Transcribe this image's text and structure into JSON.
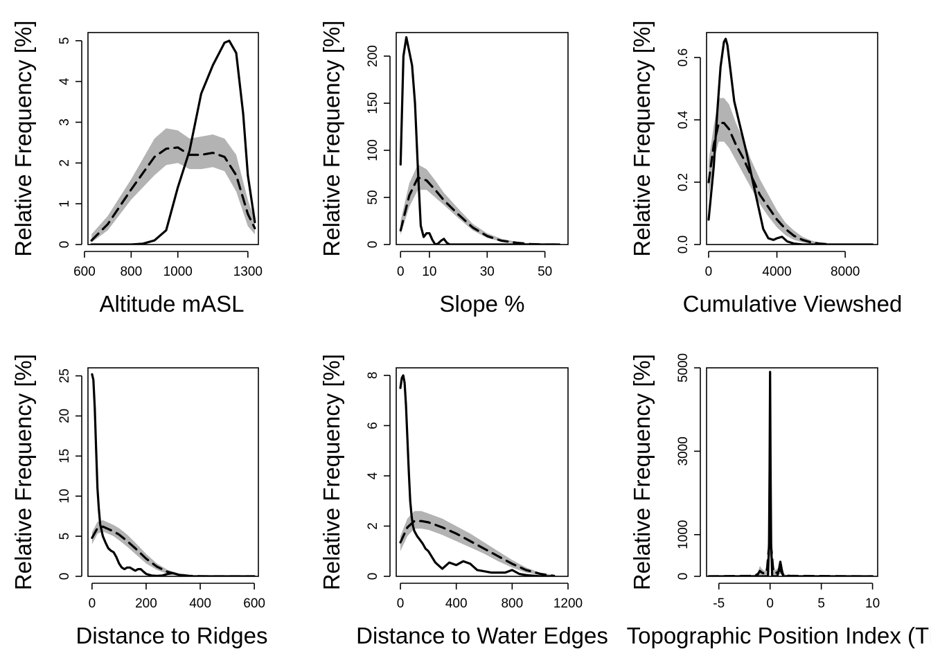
{
  "colors": {
    "observed": "#000000",
    "expected": "#000000",
    "envelope": "#b3b3b3",
    "axis": "#000000"
  },
  "chart_data": [
    {
      "type": "line",
      "xlabel": "Altitude mASL",
      "ylabel": "Relative Frequency [%]",
      "xlim": [
        615,
        1345
      ],
      "ylim": [
        0,
        5.2
      ],
      "xticks": [
        600,
        800,
        1000,
        1300
      ],
      "yticks": [
        0,
        1,
        2,
        3,
        4,
        5
      ],
      "series": [
        {
          "role": "envelope",
          "x": [
            630,
            700,
            800,
            900,
            950,
            1000,
            1050,
            1100,
            1150,
            1200,
            1250,
            1300,
            1330
          ],
          "upper": [
            0.25,
            0.7,
            1.6,
            2.6,
            2.85,
            2.8,
            2.6,
            2.65,
            2.7,
            2.6,
            2.2,
            1.1,
            0.6
          ],
          "lower": [
            0.05,
            0.35,
            1.1,
            1.7,
            1.95,
            2.0,
            1.85,
            1.85,
            1.9,
            1.8,
            1.3,
            0.45,
            0.25
          ]
        },
        {
          "role": "expected",
          "dashed": true,
          "x": [
            630,
            700,
            800,
            900,
            950,
            1000,
            1050,
            1100,
            1150,
            1200,
            1250,
            1300,
            1330
          ],
          "y": [
            0.1,
            0.5,
            1.35,
            2.15,
            2.35,
            2.38,
            2.2,
            2.2,
            2.25,
            2.15,
            1.7,
            0.75,
            0.4
          ]
        },
        {
          "role": "observed",
          "x": [
            630,
            700,
            800,
            850,
            900,
            950,
            1000,
            1050,
            1100,
            1150,
            1200,
            1220,
            1250,
            1280,
            1300,
            1330
          ],
          "y": [
            0,
            0,
            0,
            0.02,
            0.1,
            0.35,
            1.4,
            2.3,
            3.7,
            4.4,
            4.95,
            5.0,
            4.7,
            3.2,
            1.7,
            0.55
          ]
        }
      ]
    },
    {
      "type": "line",
      "xlabel": "Slope %",
      "ylabel": "Relative Frequency [%]",
      "xlim": [
        -1.5,
        58
      ],
      "ylim": [
        0,
        225
      ],
      "xticks": [
        0,
        10,
        30,
        50
      ],
      "yticks": [
        0,
        50,
        100,
        150,
        200
      ],
      "series": [
        {
          "role": "envelope",
          "x": [
            0,
            3,
            6,
            9,
            12,
            15,
            20,
            25,
            30,
            35,
            40,
            45,
            50,
            55
          ],
          "upper": [
            25,
            65,
            85,
            80,
            68,
            55,
            38,
            22,
            12,
            6,
            3,
            1,
            0.5,
            0
          ],
          "lower": [
            10,
            40,
            58,
            58,
            50,
            42,
            28,
            15,
            7,
            3,
            1,
            0,
            0,
            0
          ]
        },
        {
          "role": "expected",
          "dashed": true,
          "x": [
            0,
            3,
            6,
            9,
            12,
            15,
            20,
            25,
            30,
            35,
            40,
            45,
            50,
            55
          ],
          "y": [
            15,
            52,
            71,
            68,
            58,
            47,
            32,
            18,
            9,
            4,
            2,
            0.5,
            0,
            0
          ]
        },
        {
          "role": "observed",
          "x": [
            0,
            1,
            2,
            3,
            4,
            5,
            6,
            7,
            8,
            9,
            10,
            11,
            12,
            13,
            14,
            15,
            16,
            17,
            18,
            20,
            25,
            30,
            40,
            55
          ],
          "y": [
            85,
            200,
            220,
            205,
            190,
            150,
            80,
            20,
            8,
            12,
            12,
            5,
            0,
            1,
            4,
            6,
            2,
            0,
            0,
            0,
            0,
            0,
            0,
            0
          ]
        }
      ]
    },
    {
      "type": "line",
      "xlabel": "Cumulative Viewshed",
      "ylabel": "Relative Frequency [%]",
      "xlim": [
        -120,
        9900
      ],
      "ylim": [
        0,
        0.68
      ],
      "xticks": [
        0,
        4000,
        8000
      ],
      "yticks": [
        0.0,
        0.2,
        0.4,
        0.6
      ],
      "series": [
        {
          "role": "envelope",
          "x": [
            0,
            300,
            600,
            900,
            1200,
            1600,
            2000,
            2500,
            3000,
            3500,
            4000,
            4500,
            5000,
            5500,
            6000,
            6500,
            7000,
            7500
          ],
          "upper": [
            0.27,
            0.38,
            0.47,
            0.47,
            0.45,
            0.39,
            0.34,
            0.27,
            0.21,
            0.16,
            0.11,
            0.07,
            0.045,
            0.025,
            0.013,
            0.006,
            0.002,
            0
          ],
          "lower": [
            0.15,
            0.27,
            0.33,
            0.33,
            0.31,
            0.27,
            0.23,
            0.18,
            0.13,
            0.09,
            0.055,
            0.03,
            0.015,
            0.007,
            0.003,
            0.001,
            0,
            0
          ]
        },
        {
          "role": "expected",
          "dashed": true,
          "x": [
            0,
            300,
            600,
            900,
            1200,
            1600,
            2000,
            2500,
            3000,
            3500,
            4000,
            4500,
            5000,
            5500,
            6000,
            6500,
            7000
          ],
          "y": [
            0.2,
            0.32,
            0.39,
            0.39,
            0.37,
            0.32,
            0.28,
            0.22,
            0.16,
            0.12,
            0.08,
            0.05,
            0.028,
            0.015,
            0.007,
            0.003,
            0.001
          ]
        },
        {
          "role": "observed",
          "x": [
            0,
            300,
            500,
            700,
            900,
            1000,
            1100,
            1300,
            1500,
            1800,
            2200,
            2600,
            3000,
            3200,
            3500,
            3800,
            4000,
            4300,
            4600,
            5000,
            5500,
            6000,
            9600
          ],
          "y": [
            0.08,
            0.25,
            0.42,
            0.57,
            0.65,
            0.66,
            0.64,
            0.55,
            0.46,
            0.39,
            0.3,
            0.2,
            0.1,
            0.05,
            0.02,
            0.015,
            0.02,
            0.025,
            0.01,
            0.003,
            0,
            0,
            0
          ]
        }
      ]
    },
    {
      "type": "line",
      "xlabel": "Distance to Ridges",
      "ylabel": "Relative Frequency [%]",
      "xlim": [
        -15,
        615
      ],
      "ylim": [
        0,
        26
      ],
      "xticks": [
        0,
        200,
        400,
        600
      ],
      "yticks": [
        0,
        5,
        10,
        15,
        20,
        25
      ],
      "series": [
        {
          "role": "envelope",
          "x": [
            0,
            20,
            40,
            60,
            80,
            100,
            130,
            160,
            200,
            240,
            280,
            320,
            360,
            400,
            450,
            500,
            550,
            600
          ],
          "upper": [
            5.5,
            6.8,
            7.0,
            6.7,
            6.4,
            6.0,
            5.2,
            4.2,
            2.8,
            1.6,
            0.8,
            0.35,
            0.15,
            0.05,
            0,
            0,
            0,
            0
          ],
          "lower": [
            4.0,
            5.3,
            5.6,
            5.3,
            5.0,
            4.5,
            3.7,
            2.8,
            1.6,
            0.8,
            0.3,
            0.1,
            0,
            0,
            0,
            0,
            0,
            0
          ]
        },
        {
          "role": "expected",
          "dashed": true,
          "x": [
            0,
            20,
            40,
            60,
            80,
            100,
            130,
            160,
            200,
            240,
            280,
            320,
            360,
            400,
            450,
            500,
            550,
            600
          ],
          "y": [
            4.8,
            6.0,
            6.2,
            5.9,
            5.6,
            5.2,
            4.4,
            3.5,
            2.2,
            1.2,
            0.55,
            0.2,
            0.06,
            0.02,
            0,
            0,
            0,
            0
          ]
        },
        {
          "role": "observed",
          "x": [
            0,
            5,
            10,
            15,
            20,
            25,
            30,
            40,
            50,
            60,
            70,
            80,
            90,
            100,
            110,
            120,
            130,
            140,
            150,
            160,
            170,
            180,
            190,
            200,
            220,
            240,
            260,
            280,
            300,
            320,
            340,
            360,
            400,
            600
          ],
          "y": [
            25.2,
            24.5,
            21,
            16,
            11,
            8.5,
            6.5,
            5,
            4.2,
            3.5,
            3.2,
            3.0,
            2.4,
            1.6,
            1.1,
            0.9,
            1.1,
            1.1,
            0.9,
            0.7,
            0.9,
            0.9,
            0.6,
            0.3,
            0.1,
            0.05,
            0.1,
            0.3,
            0.4,
            0.2,
            0.1,
            0,
            0,
            0
          ]
        }
      ]
    },
    {
      "type": "line",
      "xlabel": "Distance to Water Edges",
      "ylabel": "Relative Frequency [%]",
      "xlim": [
        -30,
        1200
      ],
      "ylim": [
        0,
        8.3
      ],
      "xticks": [
        0,
        400,
        800,
        1200
      ],
      "yticks": [
        0,
        2,
        4,
        6,
        8
      ],
      "series": [
        {
          "role": "envelope",
          "x": [
            0,
            50,
            100,
            150,
            200,
            300,
            400,
            500,
            600,
            700,
            800,
            900,
            1000,
            1100
          ],
          "upper": [
            1.6,
            2.3,
            2.6,
            2.6,
            2.5,
            2.3,
            2.0,
            1.7,
            1.35,
            1.0,
            0.65,
            0.35,
            0.15,
            0.05
          ],
          "lower": [
            1.0,
            1.6,
            1.9,
            1.9,
            1.85,
            1.65,
            1.4,
            1.15,
            0.9,
            0.6,
            0.35,
            0.15,
            0.05,
            0
          ]
        },
        {
          "role": "expected",
          "dashed": true,
          "x": [
            0,
            50,
            100,
            150,
            200,
            300,
            400,
            500,
            600,
            700,
            800,
            900,
            1000,
            1100
          ],
          "y": [
            1.35,
            1.95,
            2.2,
            2.2,
            2.15,
            1.95,
            1.7,
            1.4,
            1.1,
            0.8,
            0.5,
            0.25,
            0.1,
            0.02
          ]
        },
        {
          "role": "observed",
          "x": [
            0,
            10,
            20,
            30,
            40,
            50,
            60,
            70,
            80,
            90,
            100,
            120,
            140,
            160,
            180,
            200,
            250,
            300,
            350,
            400,
            450,
            500,
            550,
            600,
            650,
            700,
            750,
            800,
            850,
            900,
            1000,
            1100
          ],
          "y": [
            7.5,
            7.9,
            8.0,
            7.7,
            6.8,
            5.5,
            4.2,
            3.0,
            2.4,
            2.0,
            1.8,
            1.6,
            1.45,
            1.3,
            1.1,
            1.0,
            0.55,
            0.3,
            0.55,
            0.45,
            0.6,
            0.5,
            0.25,
            0.2,
            0.15,
            0.15,
            0.15,
            0.25,
            0.1,
            0.05,
            0,
            0
          ]
        }
      ]
    },
    {
      "type": "line",
      "xlabel": "Topographic Position Index (TPI)",
      "ylabel": "Relative Frequency [%]",
      "xlim": [
        -6.2,
        10.5
      ],
      "ylim": [
        0,
        5000
      ],
      "xticks": [
        -5,
        0,
        5,
        10
      ],
      "yticks": [
        0,
        1000,
        3000,
        5000
      ],
      "series": [
        {
          "role": "envelope",
          "x": [
            -6,
            -2,
            -1.5,
            -1.2,
            -1,
            -0.8,
            -0.5,
            -0.3,
            -0.15,
            0,
            0.15,
            0.3,
            0.5,
            0.8,
            1,
            1.2,
            1.5,
            2,
            10
          ],
          "upper": [
            0,
            20,
            40,
            100,
            250,
            180,
            120,
            300,
            900,
            1200,
            900,
            300,
            150,
            200,
            280,
            120,
            40,
            20,
            0
          ],
          "lower": [
            0,
            0,
            0,
            10,
            40,
            20,
            10,
            50,
            300,
            500,
            300,
            50,
            10,
            30,
            60,
            10,
            0,
            0,
            0
          ]
        },
        {
          "role": "expected",
          "dashed": true,
          "x": [
            -6,
            -2,
            -1.5,
            -1.2,
            -1,
            -0.8,
            -0.5,
            -0.3,
            -0.15,
            0,
            0.15,
            0.3,
            0.5,
            0.8,
            1,
            1.2,
            1.5,
            2,
            10
          ],
          "y": [
            0,
            10,
            20,
            50,
            130,
            90,
            60,
            170,
            600,
            850,
            600,
            170,
            70,
            110,
            160,
            60,
            20,
            10,
            0
          ]
        },
        {
          "role": "observed",
          "x": [
            -6,
            -1,
            -0.5,
            -0.3,
            -0.2,
            -0.1,
            -0.05,
            0,
            0.05,
            0.1,
            0.2,
            0.3,
            0.5,
            0.7,
            0.85,
            1,
            1.15,
            1.3,
            1.6,
            10
          ],
          "y": [
            0,
            0,
            0,
            0,
            30,
            800,
            2600,
            4900,
            2600,
            800,
            30,
            0,
            0,
            0,
            150,
            350,
            150,
            0,
            0,
            0
          ]
        }
      ]
    }
  ]
}
